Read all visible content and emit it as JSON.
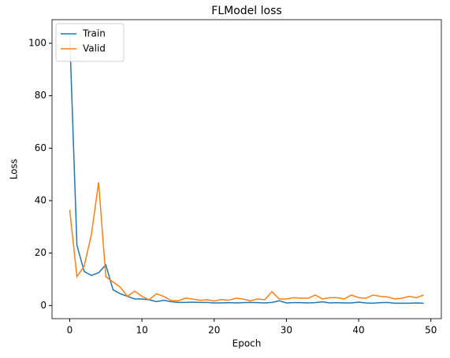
{
  "chart_data": {
    "type": "line",
    "title": "FLModel loss",
    "x_label": "Epoch",
    "y_label": "Loss",
    "x": [
      0,
      1,
      2,
      3,
      4,
      5,
      6,
      7,
      8,
      9,
      10,
      11,
      12,
      13,
      14,
      15,
      16,
      17,
      18,
      19,
      20,
      21,
      22,
      23,
      24,
      25,
      26,
      27,
      28,
      29,
      30,
      31,
      32,
      33,
      34,
      35,
      36,
      37,
      38,
      39,
      40,
      41,
      42,
      43,
      44,
      45,
      46,
      47,
      48,
      49
    ],
    "series": [
      {
        "name": "Train",
        "color": "#1f77b4",
        "values": [
          103,
          23,
          13,
          11.5,
          12.5,
          15.5,
          6,
          4.5,
          3.5,
          2.5,
          2.5,
          2.2,
          1.5,
          2,
          1.5,
          1.2,
          1.2,
          1.3,
          1.2,
          1.2,
          1,
          1,
          1.1,
          1,
          1.1,
          1.2,
          1.1,
          1,
          1.2,
          1.8,
          1,
          1.1,
          1.1,
          1,
          1.1,
          1.4,
          1,
          1.1,
          1,
          1,
          1.3,
          1,
          0.9,
          1.1,
          1.2,
          0.9,
          0.9,
          0.9,
          1,
          0.9
        ]
      },
      {
        "name": "Valid",
        "color": "#ff7f0e",
        "values": [
          36.5,
          11,
          15,
          27,
          47,
          11,
          9,
          7,
          3.5,
          5.5,
          3.5,
          2.2,
          4.5,
          3.5,
          2,
          1.8,
          2.8,
          2.5,
          2,
          2.2,
          1.7,
          2.3,
          2,
          2.8,
          2.5,
          1.8,
          2.5,
          2.2,
          5.3,
          2.5,
          2.5,
          3,
          2.8,
          2.8,
          4,
          2.5,
          3,
          3,
          2.5,
          4,
          3,
          2.8,
          4,
          3.5,
          3.3,
          2.5,
          2.8,
          3.5,
          3,
          4
        ]
      }
    ],
    "xlim": [
      -2.45,
      51.45
    ],
    "xticks": [
      0,
      10,
      20,
      30,
      40,
      50
    ],
    "ylim": [
      -5,
      109
    ],
    "yticks": [
      0,
      20,
      40,
      60,
      80,
      100
    ],
    "legend": "upper left"
  }
}
